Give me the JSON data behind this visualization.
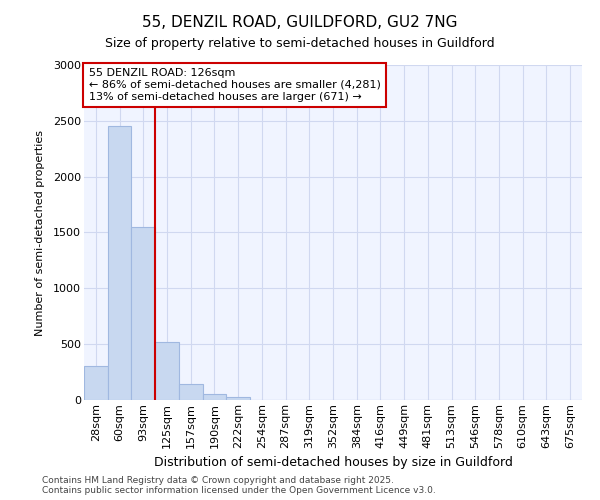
{
  "title1": "55, DENZIL ROAD, GUILDFORD, GU2 7NG",
  "title2": "Size of property relative to semi-detached houses in Guildford",
  "xlabel": "Distribution of semi-detached houses by size in Guildford",
  "ylabel": "Number of semi-detached properties",
  "categories": [
    "28sqm",
    "60sqm",
    "93sqm",
    "125sqm",
    "157sqm",
    "190sqm",
    "222sqm",
    "254sqm",
    "287sqm",
    "319sqm",
    "352sqm",
    "384sqm",
    "416sqm",
    "449sqm",
    "481sqm",
    "513sqm",
    "546sqm",
    "578sqm",
    "610sqm",
    "643sqm",
    "675sqm"
  ],
  "values": [
    305,
    2450,
    1550,
    520,
    140,
    50,
    30,
    0,
    0,
    0,
    0,
    0,
    0,
    0,
    0,
    0,
    0,
    0,
    0,
    0,
    0
  ],
  "bar_color": "#c8d8f0",
  "bar_edge_color": "#a0b8e0",
  "vline_x_index": 3,
  "vline_color": "#cc0000",
  "annotation_line1": "55 DENZIL ROAD: 126sqm",
  "annotation_line2": "← 86% of semi-detached houses are smaller (4,281)",
  "annotation_line3": "13% of semi-detached houses are larger (671) →",
  "annotation_box_color": "#cc0000",
  "annotation_fill_color": "#ffffff",
  "ylim": [
    0,
    3000
  ],
  "yticks": [
    0,
    500,
    1000,
    1500,
    2000,
    2500,
    3000
  ],
  "footer_line1": "Contains HM Land Registry data © Crown copyright and database right 2025.",
  "footer_line2": "Contains public sector information licensed under the Open Government Licence v3.0.",
  "background_color": "#ffffff",
  "plot_bg_color": "#f0f4ff",
  "grid_color": "#d0d8f0",
  "title1_fontsize": 11,
  "title2_fontsize": 9,
  "ylabel_fontsize": 8,
  "xlabel_fontsize": 9,
  "tick_fontsize": 8,
  "footer_fontsize": 6.5
}
